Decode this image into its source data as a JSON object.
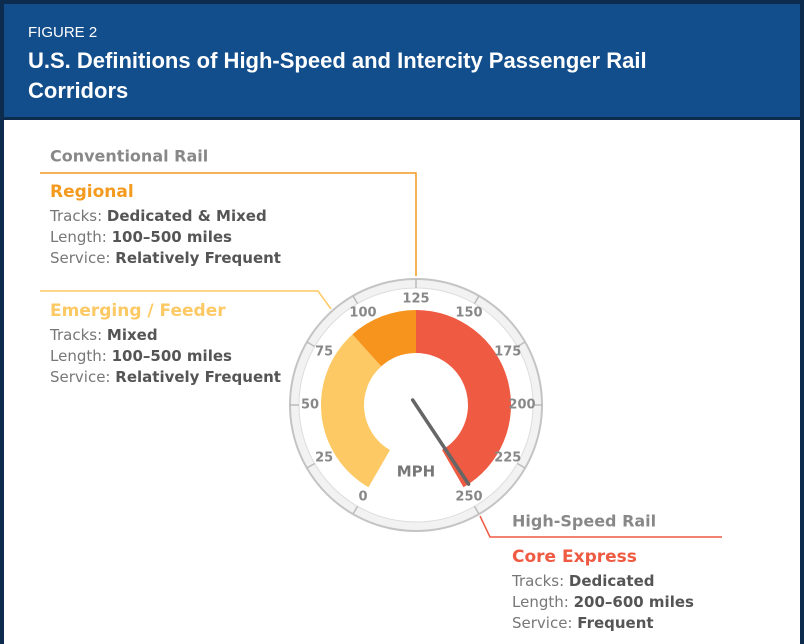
{
  "header": {
    "label": "FIGURE 2",
    "title": "U.S. Definitions of High-Speed and Intercity Passenger Rail Corridors"
  },
  "groups": [
    {
      "name": "Conventional Rail",
      "corridors": [
        {
          "name": "Regional",
          "color": "#f39a1f",
          "rows": [
            {
              "key": "Tracks:",
              "value": "Dedicated & Mixed"
            },
            {
              "key": "Length:",
              "value": "100–500 miles"
            },
            {
              "key": "Service:",
              "value": "Relatively Frequent"
            }
          ]
        },
        {
          "name": "Emerging / Feeder",
          "color": "#fdc965",
          "rows": [
            {
              "key": "Tracks:",
              "value": "Mixed"
            },
            {
              "key": "Length:",
              "value": "100–500 miles"
            },
            {
              "key": "Service:",
              "value": "Relatively Frequent"
            }
          ]
        }
      ]
    },
    {
      "name": "High-Speed Rail",
      "corridors": [
        {
          "name": "Core Express",
          "color": "#ef5a42",
          "rows": [
            {
              "key": "Tracks:",
              "value": "Dedicated"
            },
            {
              "key": "Length:",
              "value": "200–600 miles"
            },
            {
              "key": "Service:",
              "value": "Frequent"
            }
          ]
        }
      ]
    }
  ],
  "gauge": {
    "unit": "MPH",
    "ticks": [
      0,
      25,
      50,
      75,
      100,
      125,
      150,
      175,
      200,
      225,
      250
    ],
    "segments": [
      {
        "from": 0,
        "to": 90,
        "color": "#fdc965"
      },
      {
        "from": 90,
        "to": 125,
        "color": "#f7941d"
      },
      {
        "from": 125,
        "to": 250,
        "color": "#ef5a42"
      }
    ],
    "needle": 247
  }
}
